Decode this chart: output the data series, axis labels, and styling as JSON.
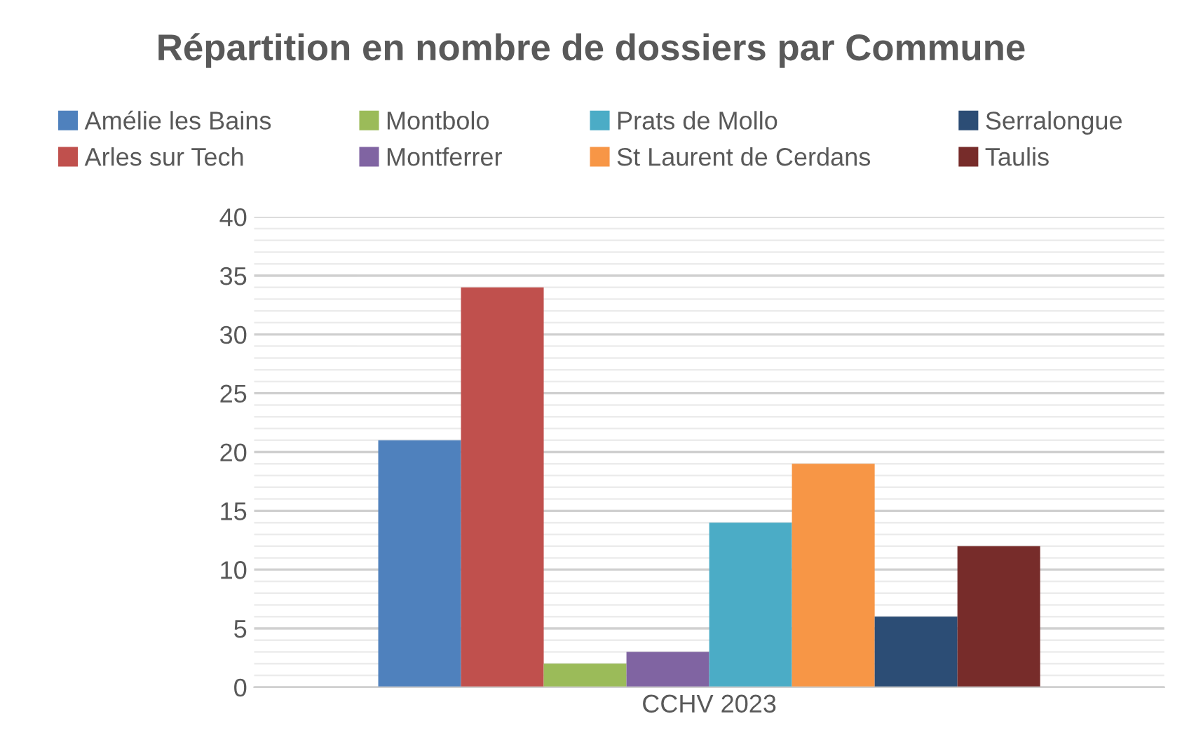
{
  "chart_data": {
    "type": "bar",
    "title": "Répartition en nombre de dossiers par Commune",
    "categories": [
      "CCHV 2023"
    ],
    "series": [
      {
        "name": "Amélie les Bains",
        "color": "#4f81bd",
        "values": [
          21
        ]
      },
      {
        "name": "Arles sur Tech",
        "color": "#c0504d",
        "values": [
          34
        ]
      },
      {
        "name": "Montbolo",
        "color": "#9bbb59",
        "values": [
          2
        ]
      },
      {
        "name": "Montferrer",
        "color": "#8064a2",
        "values": [
          3
        ]
      },
      {
        "name": "Prats de Mollo",
        "color": "#4bacc6",
        "values": [
          14
        ]
      },
      {
        "name": "St Laurent de Cerdans",
        "color": "#f79646",
        "values": [
          19
        ]
      },
      {
        "name": "Serralongue",
        "color": "#2c4d75",
        "values": [
          6
        ]
      },
      {
        "name": "Taulis",
        "color": "#772c2a",
        "values": [
          12
        ]
      }
    ],
    "ylim": [
      0,
      40
    ],
    "yticks": [
      0,
      {
        "value": 1,
        "label": null
      },
      {
        "value": 2,
        "label": null
      },
      {
        "value": 3,
        "label": null
      },
      {
        "value": 4,
        "label": null
      },
      5,
      {
        "value": 6,
        "label": null
      },
      {
        "value": 7,
        "label": null
      },
      {
        "value": 8,
        "label": null
      },
      {
        "value": 9,
        "label": null
      },
      10,
      {
        "value": 11,
        "label": null
      },
      {
        "value": 12,
        "label": null
      },
      {
        "value": 13,
        "label": null
      },
      {
        "value": 14,
        "label": null
      },
      15,
      {
        "value": 16,
        "label": null
      },
      {
        "value": 17,
        "label": null
      },
      {
        "value": 18,
        "label": null
      },
      {
        "value": 19,
        "label": null
      },
      20,
      {
        "value": 21,
        "label": null
      },
      {
        "value": 22,
        "label": null
      },
      {
        "value": 23,
        "label": null
      },
      {
        "value": 24,
        "label": null
      },
      25,
      {
        "value": 26,
        "label": null
      },
      {
        "value": 27,
        "label": null
      },
      {
        "value": 28,
        "label": null
      },
      {
        "value": 29,
        "label": null
      },
      30,
      {
        "value": 31,
        "label": null
      },
      {
        "value": 32,
        "label": null
      },
      {
        "value": 33,
        "label": null
      },
      {
        "value": 34,
        "label": null
      },
      35,
      {
        "value": 36,
        "label": null
      },
      {
        "value": 37,
        "label": null
      },
      {
        "value": 38,
        "label": null
      },
      {
        "value": 39,
        "label": null
      },
      40
    ],
    "grid": "y",
    "legend": "top"
  }
}
